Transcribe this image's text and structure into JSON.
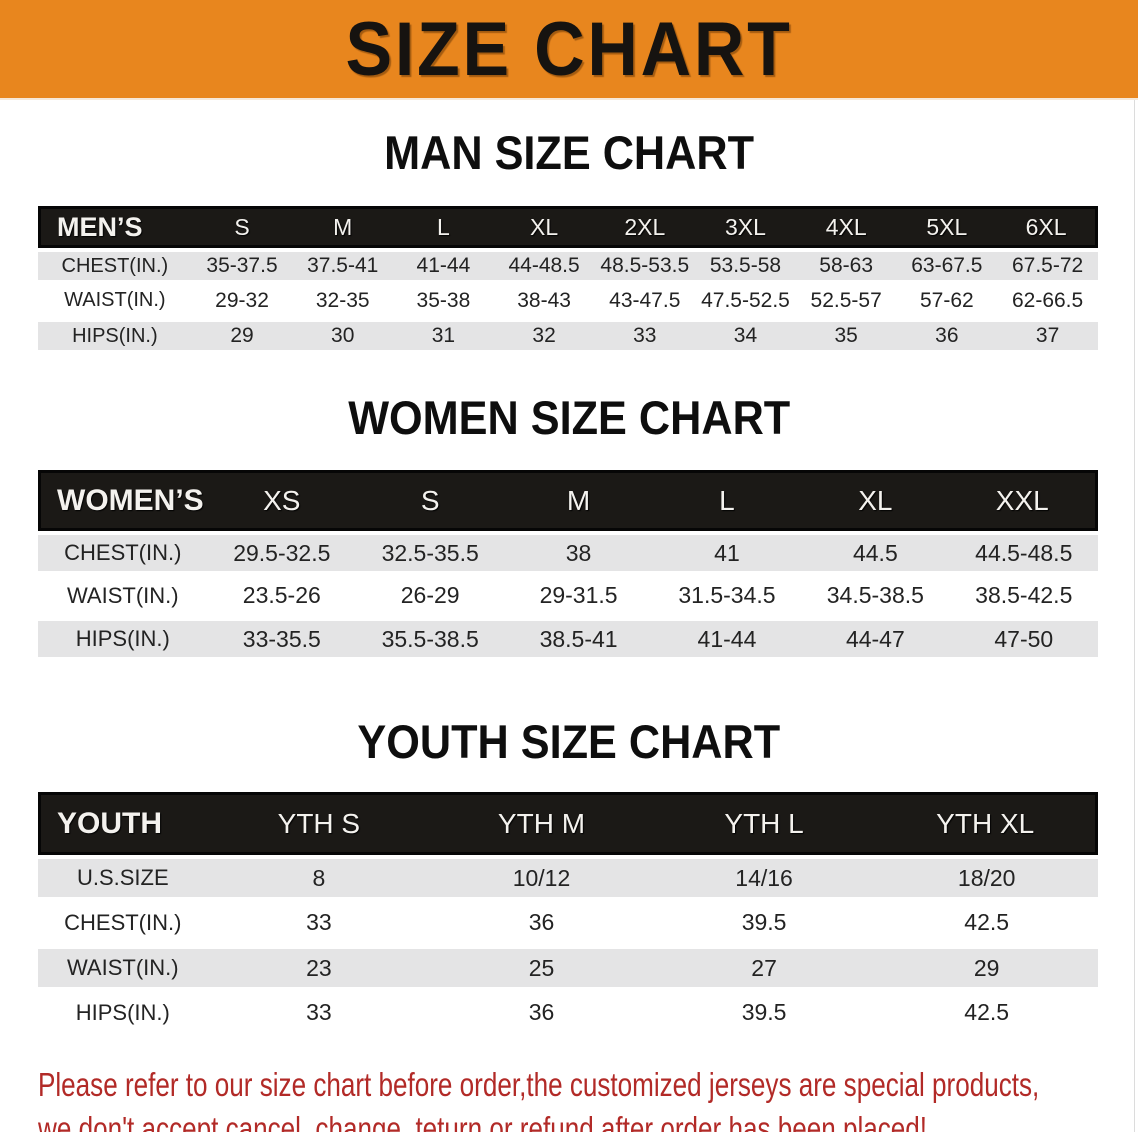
{
  "banner": {
    "title": "SIZE CHART",
    "bg_color": "#E8861E",
    "text_color": "#161310"
  },
  "sections": [
    {
      "heading": "MAN SIZE CHART",
      "table": {
        "label": "MEN’S",
        "columns": [
          "S",
          "M",
          "L",
          "XL",
          "2XL",
          "3XL",
          "4XL",
          "5XL",
          "6XL"
        ],
        "rows": [
          {
            "label": "CHEST(IN.)",
            "values": [
              "35-37.5",
              "37.5-41",
              "41-44",
              "44-48.5",
              "48.5-53.5",
              "53.5-58",
              "58-63",
              "63-67.5",
              "67.5-72"
            ]
          },
          {
            "label": "WAIST(IN.)",
            "values": [
              "29-32",
              "32-35",
              "35-38",
              "38-43",
              "43-47.5",
              "47.5-52.5",
              "52.5-57",
              "57-62",
              "62-66.5"
            ]
          },
          {
            "label": "HIPS(IN.)",
            "values": [
              "29",
              "30",
              "31",
              "32",
              "33",
              "34",
              "35",
              "36",
              "37"
            ]
          }
        ]
      }
    },
    {
      "heading": "WOMEN SIZE CHART",
      "table": {
        "label": "WOMEN’S",
        "columns": [
          "XS",
          "S",
          "M",
          "L",
          "XL",
          "XXL"
        ],
        "rows": [
          {
            "label": "CHEST(IN.)",
            "values": [
              "29.5-32.5",
              "32.5-35.5",
              "38",
              "41",
              "44.5",
              "44.5-48.5"
            ]
          },
          {
            "label": "WAIST(IN.)",
            "values": [
              "23.5-26",
              "26-29",
              "29-31.5",
              "31.5-34.5",
              "34.5-38.5",
              "38.5-42.5"
            ]
          },
          {
            "label": "HIPS(IN.)",
            "values": [
              "33-35.5",
              "35.5-38.5",
              "38.5-41",
              "41-44",
              "44-47",
              "47-50"
            ]
          }
        ]
      }
    },
    {
      "heading": "YOUTH SIZE CHART",
      "table": {
        "label": "YOUTH",
        "columns": [
          "YTH S",
          "YTH M",
          "YTH L",
          "YTH XL"
        ],
        "rows": [
          {
            "label": "U.S.SIZE",
            "values": [
              "8",
              "10/12",
              "14/16",
              "18/20"
            ]
          },
          {
            "label": "CHEST(IN.)",
            "values": [
              "33",
              "36",
              "39.5",
              "42.5"
            ]
          },
          {
            "label": "WAIST(IN.)",
            "values": [
              "23",
              "25",
              "27",
              "29"
            ]
          },
          {
            "label": "HIPS(IN.)",
            "values": [
              "33",
              "36",
              "39.5",
              "42.5"
            ]
          }
        ]
      }
    }
  ],
  "footer": {
    "line1": "Please refer to our size chart before order,the customized jerseys are special products,",
    "line2": "we don't accept cancel, change, teturn or refund after order has been placed!",
    "text_color": "#b22a27"
  },
  "colors": {
    "banner_orange": "#E8861E",
    "table_header_black": "#1b1916",
    "row_stripe_gray": "#e4e4e5",
    "row_white": "#ffffff",
    "footer_red": "#b22a27"
  }
}
